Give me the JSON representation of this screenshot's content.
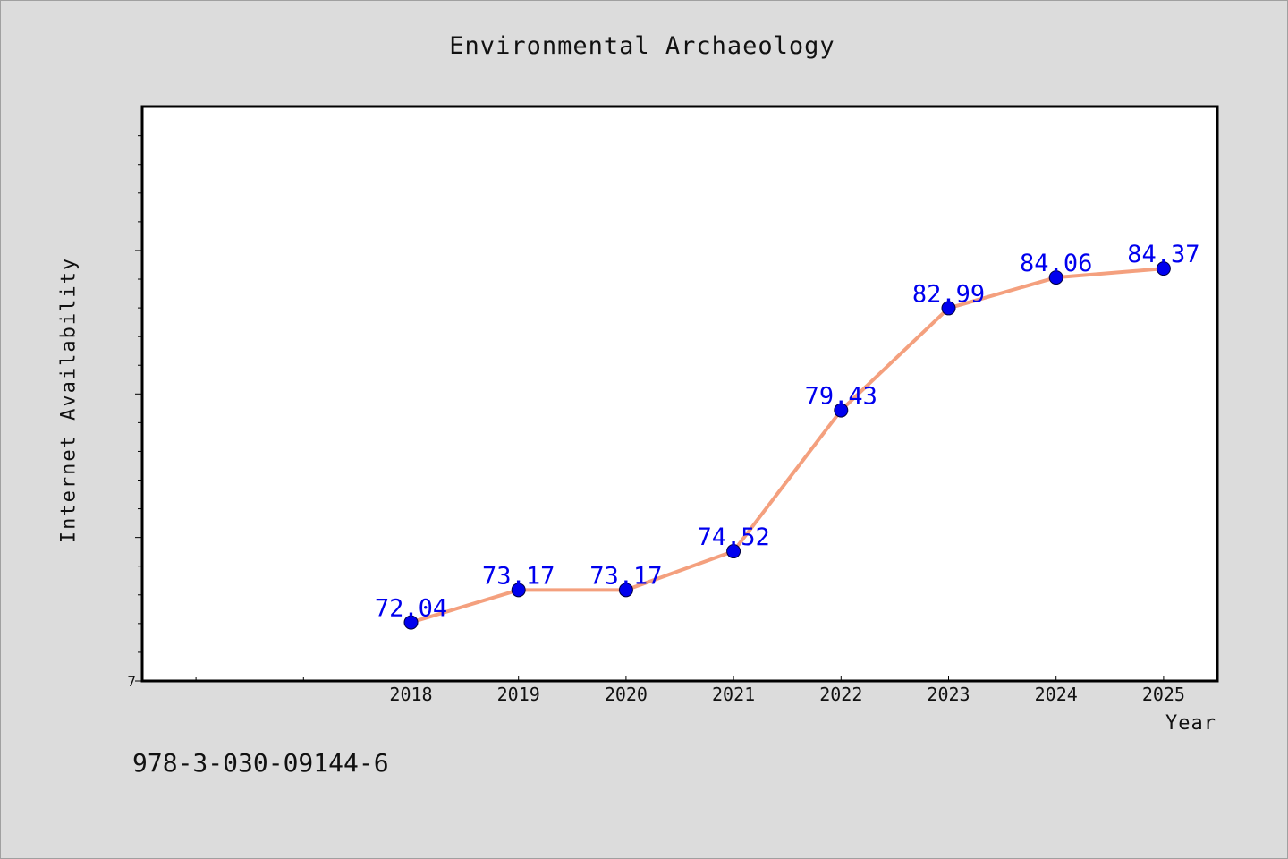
{
  "chart_data": {
    "type": "line",
    "title": "Environmental Archaeology",
    "xlabel": "Year",
    "ylabel": "Internet Availability",
    "x": [
      "2018",
      "2019",
      "2020",
      "2021",
      "2022",
      "2023",
      "2024",
      "2025"
    ],
    "values": [
      72.04,
      73.17,
      73.17,
      74.52,
      79.43,
      82.99,
      84.06,
      84.37
    ],
    "data_labels": [
      "72.04",
      "73.17",
      "73.17",
      "74.52",
      "79.43",
      "82.99",
      "84.06",
      "84.37"
    ],
    "ylim": [
      70,
      90
    ],
    "y_tick_labels": [
      "7"
    ],
    "grid": false,
    "legend": "none",
    "colors": {
      "line": "#f4a07e",
      "marker": "#0000ee",
      "label": "#0000ee",
      "plot_bg": "#ffffff",
      "page_bg": "#dcdcdc"
    }
  },
  "footer_text": "978-3-030-09144-6"
}
